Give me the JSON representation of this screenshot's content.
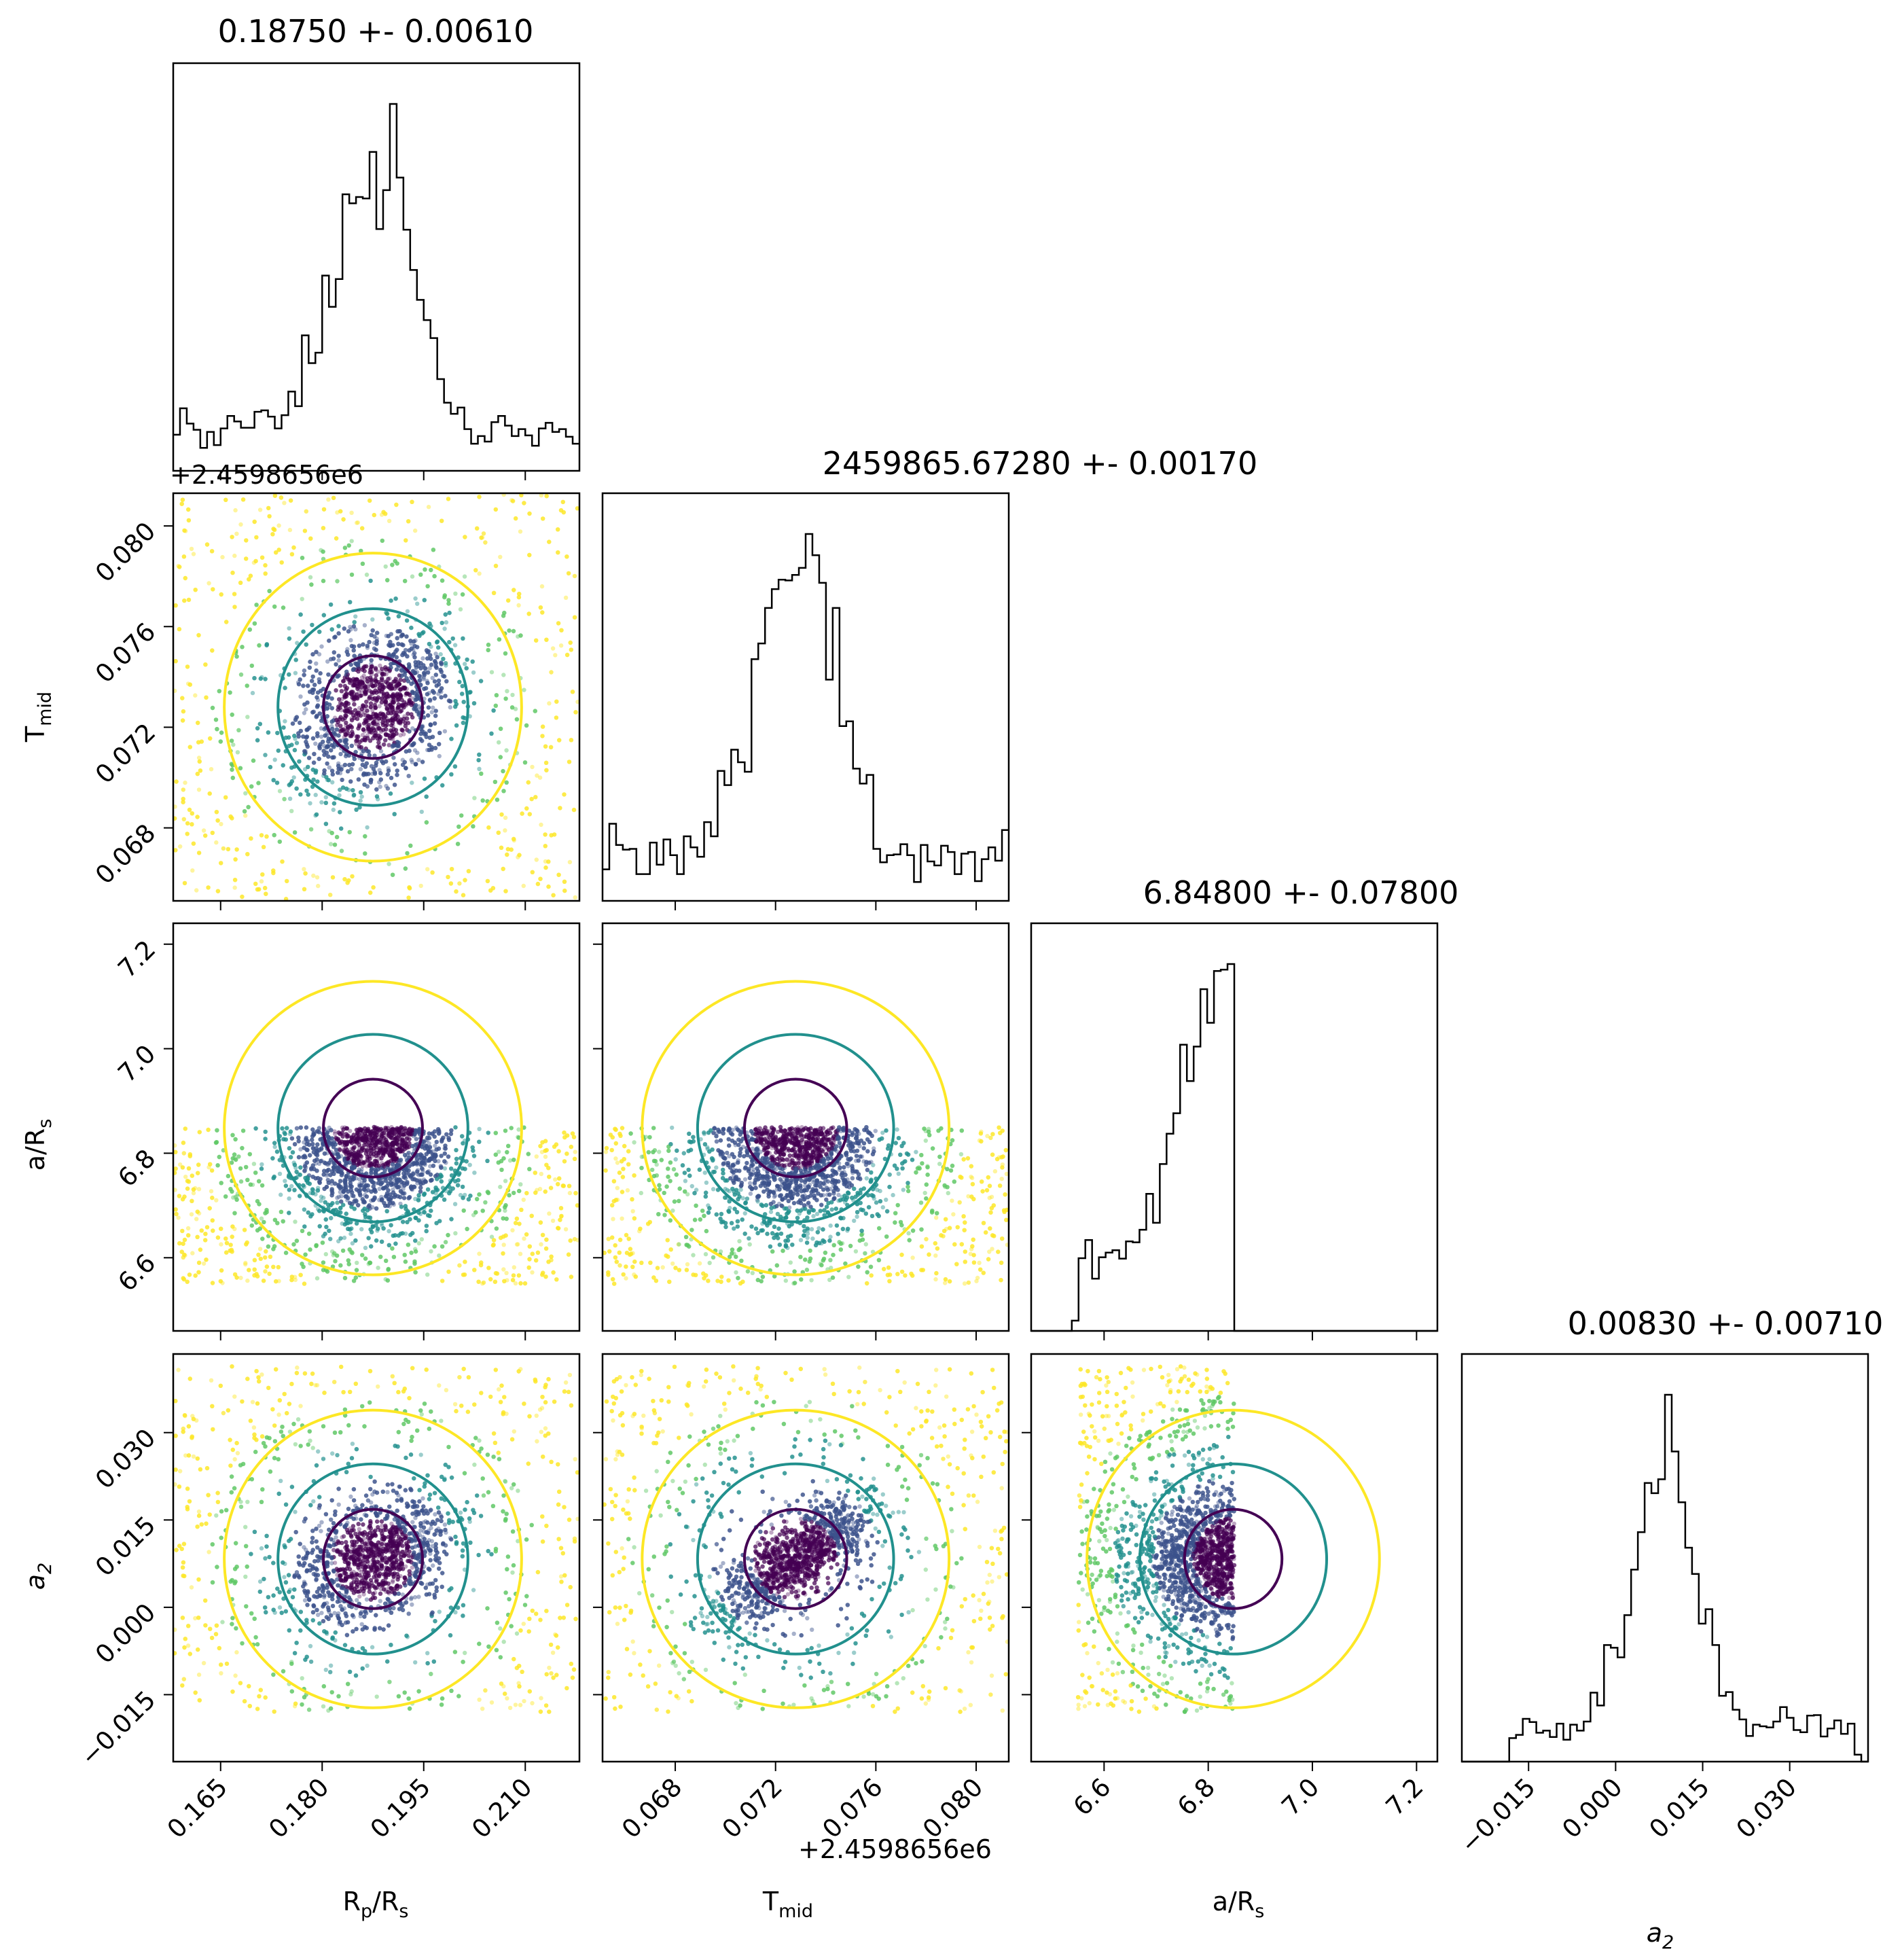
{
  "chart_data": {
    "type": "corner",
    "parameters": [
      {
        "key": "rp",
        "label": "R",
        "sub": "p",
        "suffix": "/R",
        "sub2": "s",
        "range": [
          0.158,
          0.218
        ],
        "ticks": [
          "0.165",
          "0.180",
          "0.195",
          "0.210"
        ],
        "tickvals": [
          0.165,
          0.18,
          0.195,
          0.21
        ],
        "mean": 0.1875,
        "sd": 0.0061,
        "offset_label": ""
      },
      {
        "key": "tmid",
        "label": "T",
        "sub": "mid",
        "suffix": "",
        "sub2": "",
        "range": [
          0.0651,
          0.0813
        ],
        "ticks": [
          "0.068",
          "0.072",
          "0.076",
          "0.080"
        ],
        "tickvals": [
          0.068,
          0.072,
          0.076,
          0.08
        ],
        "mean": 0.0728,
        "sd": 0.0017,
        "offset_label": "+2.4598656e6"
      },
      {
        "key": "ars",
        "label": "a/R",
        "sub": "s",
        "suffix": "",
        "sub2": "",
        "range": [
          6.46,
          7.24
        ],
        "ticks": [
          "6.6",
          "6.8",
          "7.0",
          "7.2"
        ],
        "tickvals": [
          6.6,
          6.8,
          7.0,
          7.2
        ],
        "mean": 6.848,
        "sd": 0.078,
        "offset_label": ""
      },
      {
        "key": "a2",
        "label": "a",
        "sub": "2",
        "suffix": "",
        "sub2": "",
        "range": [
          -0.0265,
          0.0435
        ],
        "ticks": [
          "−0.015",
          "0.000",
          "0.015",
          "0.030"
        ],
        "tickvals": [
          -0.015,
          0.0,
          0.015,
          0.03
        ],
        "mean": 0.0083,
        "sd": 0.0071,
        "offset_label": ""
      }
    ],
    "titles": [
      "0.18750 +- 0.00610",
      "2459865.67280 +- 0.00170",
      "6.84800 +- 0.07800",
      "0.00830 +- 0.00710"
    ],
    "ars_support": [
      6.55,
      6.85
    ],
    "contour_colors": [
      "#440154",
      "#21908d",
      "#fde725"
    ],
    "histogram_color": "#000000"
  }
}
